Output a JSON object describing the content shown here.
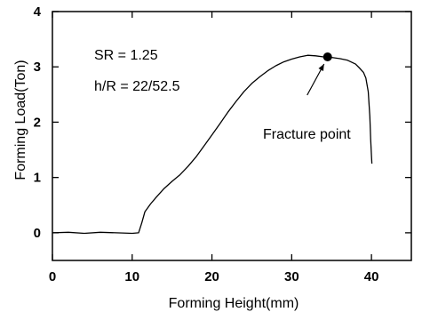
{
  "chart_data": {
    "type": "line",
    "title": "",
    "xlabel": "Forming Height(mm)",
    "ylabel": "Forming Load(Ton)",
    "xlim": [
      0,
      45
    ],
    "ylim": [
      -0.5,
      4
    ],
    "xticks": [
      0,
      10,
      20,
      30,
      40
    ],
    "yticks": [
      0,
      1,
      2,
      3,
      4
    ],
    "grid": false,
    "series": [
      {
        "name": "",
        "color": "#000000",
        "x": [
          0,
          2,
          4,
          6,
          8,
          10,
          10.8,
          11.2,
          11.6,
          12.3,
          13,
          14,
          15,
          16,
          17,
          18,
          19,
          20,
          21,
          22,
          23,
          24,
          25,
          26,
          27,
          28,
          29,
          30,
          31,
          32,
          33,
          34,
          35,
          36,
          37,
          38,
          38.5,
          39,
          39.3,
          39.6,
          39.8,
          39.9,
          40,
          40.05
        ],
        "y": [
          0.0,
          0.01,
          -0.01,
          0.01,
          0.0,
          -0.01,
          0.0,
          0.18,
          0.38,
          0.52,
          0.64,
          0.8,
          0.93,
          1.05,
          1.2,
          1.37,
          1.57,
          1.77,
          1.97,
          2.18,
          2.37,
          2.55,
          2.7,
          2.82,
          2.93,
          3.02,
          3.09,
          3.14,
          3.18,
          3.21,
          3.2,
          3.18,
          3.17,
          3.15,
          3.12,
          3.05,
          2.98,
          2.9,
          2.8,
          2.55,
          2.1,
          1.7,
          1.4,
          1.25
        ]
      }
    ],
    "marker": {
      "label": "Fracture point",
      "x": 34.5,
      "y": 3.18
    },
    "annotations": {
      "sr": "SR  = 1.25",
      "hr": "h/R = 22/52.5",
      "fracture": "Fracture point"
    }
  }
}
